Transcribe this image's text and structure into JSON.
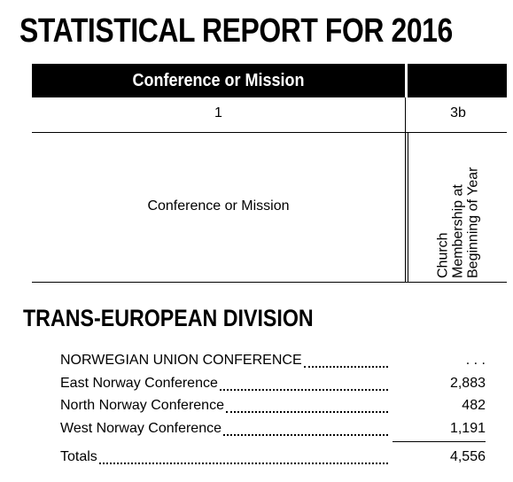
{
  "header": {
    "title": "STATISTICAL REPORT FOR 2016"
  },
  "table": {
    "group_header": "Conference or Mission",
    "column_numbers": [
      "1",
      "3b"
    ],
    "column_heads": {
      "name": "Conference or Mission",
      "membership_lines": [
        "Church",
        "Membership at",
        "Beginning of Year"
      ]
    }
  },
  "section": {
    "title": "TRANS-EUROPEAN DIVISION",
    "rows": [
      {
        "name": "NORWEGIAN UNION CONFERENCE",
        "value": ". . ."
      },
      {
        "name": "East Norway Conference",
        "value": "2,883"
      },
      {
        "name": "North Norway Conference",
        "value": "482"
      },
      {
        "name": "West Norway Conference",
        "value": "1,191"
      }
    ],
    "totals": {
      "name": "Totals",
      "value": "4,556"
    }
  }
}
